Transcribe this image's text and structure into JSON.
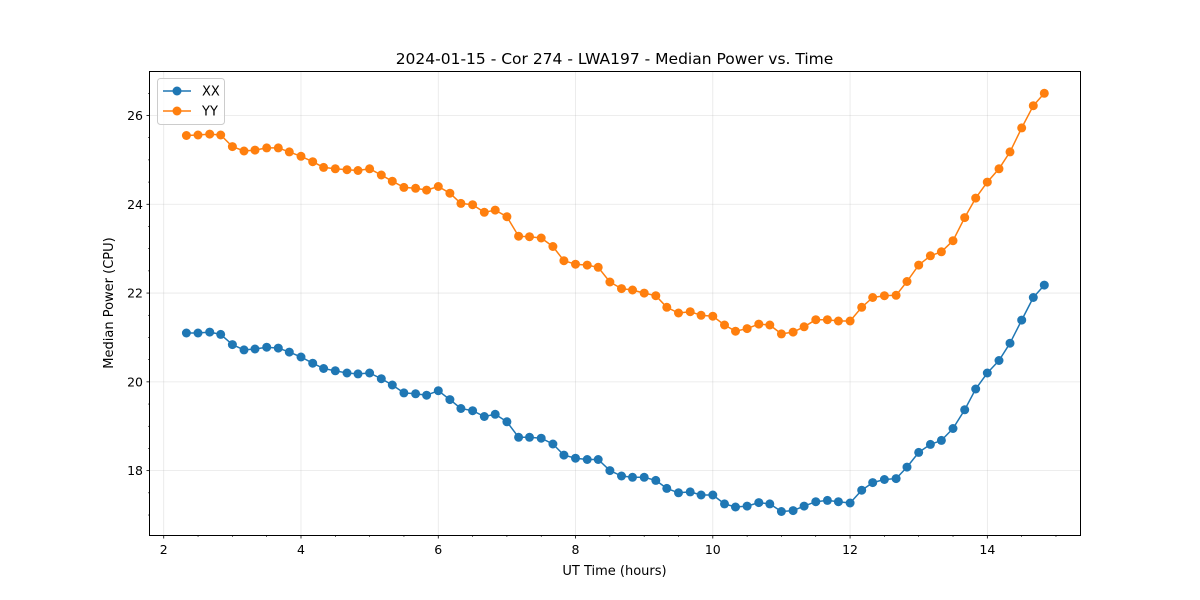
{
  "chart_data": {
    "type": "line",
    "title": "2024-01-15 - Cor 274 - LWA197 - Median Power vs. Time",
    "xlabel": "UT Time (hours)",
    "ylabel": "Median Power (CPU)",
    "xlim": [
      1.8,
      15.35
    ],
    "ylim": [
      16.55,
      26.98
    ],
    "xticks": [
      2,
      4,
      6,
      8,
      10,
      12,
      14
    ],
    "xtick_labels": [
      "2",
      "4",
      "6",
      "8",
      "10",
      "12",
      "14"
    ],
    "xminor_step": 0.5,
    "yticks": [
      18,
      20,
      22,
      24,
      26
    ],
    "ytick_labels": [
      "18",
      "20",
      "22",
      "24",
      "26"
    ],
    "yminor_step": 0.5,
    "grid": true,
    "legend_position": "top-left",
    "x": [
      2.33,
      2.5,
      2.67,
      2.83,
      3.0,
      3.17,
      3.33,
      3.5,
      3.67,
      3.83,
      4.0,
      4.17,
      4.33,
      4.5,
      4.67,
      4.83,
      5.0,
      5.17,
      5.33,
      5.5,
      5.67,
      5.83,
      6.0,
      6.17,
      6.33,
      6.5,
      6.67,
      6.83,
      7.0,
      7.17,
      7.33,
      7.5,
      7.67,
      7.83,
      8.0,
      8.17,
      8.33,
      8.5,
      8.67,
      8.83,
      9.0,
      9.17,
      9.33,
      9.5,
      9.67,
      9.83,
      10.0,
      10.17,
      10.33,
      10.5,
      10.67,
      10.83,
      11.0,
      11.17,
      11.33,
      11.5,
      11.67,
      11.83,
      12.0,
      12.17,
      12.33,
      12.5,
      12.67,
      12.83,
      13.0,
      13.17,
      13.33,
      13.5,
      13.67,
      13.83,
      14.0,
      14.17,
      14.33,
      14.5,
      14.67,
      14.83
    ],
    "series": [
      {
        "name": "XX",
        "color": "#1f77b4",
        "values": [
          21.1,
          21.1,
          21.12,
          21.07,
          20.84,
          20.72,
          20.74,
          20.78,
          20.76,
          20.67,
          20.56,
          20.42,
          20.3,
          20.25,
          20.2,
          20.18,
          20.2,
          20.07,
          19.93,
          19.75,
          19.73,
          19.7,
          19.8,
          19.6,
          19.4,
          19.35,
          19.22,
          19.27,
          19.1,
          18.75,
          18.75,
          18.73,
          18.6,
          18.35,
          18.28,
          18.25,
          18.25,
          18.0,
          17.88,
          17.85,
          17.85,
          17.78,
          17.6,
          17.5,
          17.52,
          17.45,
          17.45,
          17.25,
          17.18,
          17.2,
          17.28,
          17.25,
          17.08,
          17.1,
          17.2,
          17.3,
          17.33,
          17.3,
          17.27,
          17.56,
          17.73,
          17.8,
          17.82,
          18.08,
          18.41,
          18.59,
          18.68,
          18.95,
          19.37,
          19.84,
          20.2,
          20.48,
          20.87,
          21.39,
          21.9,
          22.18
        ]
      },
      {
        "name": "YY",
        "color": "#ff7f0e",
        "values": [
          25.55,
          25.56,
          25.58,
          25.56,
          25.3,
          25.2,
          25.22,
          25.27,
          25.27,
          25.18,
          25.08,
          24.96,
          24.83,
          24.8,
          24.78,
          24.76,
          24.8,
          24.66,
          24.52,
          24.38,
          24.36,
          24.32,
          24.4,
          24.25,
          24.02,
          23.99,
          23.82,
          23.87,
          23.72,
          23.28,
          23.27,
          23.24,
          23.05,
          22.73,
          22.65,
          22.63,
          22.58,
          22.25,
          22.1,
          22.07,
          22.0,
          21.94,
          21.68,
          21.55,
          21.58,
          21.5,
          21.48,
          21.28,
          21.14,
          21.2,
          21.3,
          21.28,
          21.08,
          21.12,
          21.24,
          21.4,
          21.4,
          21.37,
          21.37,
          21.68,
          21.9,
          21.94,
          21.95,
          22.26,
          22.63,
          22.84,
          22.93,
          23.18,
          23.7,
          24.14,
          24.5,
          24.8,
          25.18,
          25.72,
          26.22,
          26.5
        ]
      }
    ]
  }
}
